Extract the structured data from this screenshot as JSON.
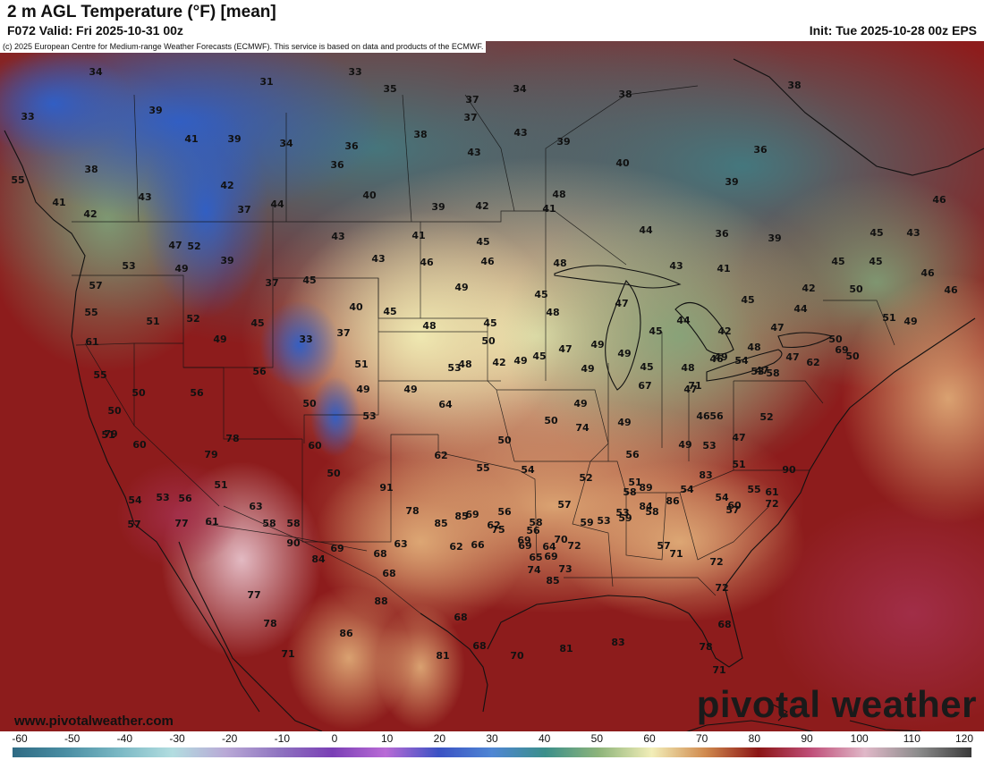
{
  "header": {
    "title": "2 m AGL Temperature (°F) [mean]",
    "valid": "F072 Valid: Fri 2025-10-31 00z",
    "init": "Init: Tue 2025-10-28 00z EPS"
  },
  "copyright": "(c) 2025 European Centre for Medium-range Weather Forecasts (ECMWF). This service is based on data and products of the ECMWF.",
  "footer": {
    "url": "www.pivotalweather.com",
    "brand": "pivotal weather"
  },
  "colorbar": {
    "ticks": [
      "-60",
      "-50",
      "-40",
      "-30",
      "-20",
      "-10",
      "0",
      "10",
      "20",
      "30",
      "40",
      "50",
      "60",
      "70",
      "80",
      "90",
      "100",
      "110",
      "120"
    ],
    "stops": [
      "#2f6b84",
      "#4a8ea3",
      "#7ab8c4",
      "#b2dde0",
      "#b9a9d6",
      "#8f74c0",
      "#7a3fb5",
      "#b96bd6",
      "#3b52c4",
      "#4f86d4",
      "#3b8f8a",
      "#8db47a",
      "#f2eeb8",
      "#d08a4e",
      "#8b1515",
      "#c0507a",
      "#e0b8c8",
      "#8c8c8c",
      "#3a3a3a"
    ]
  },
  "temperatures": [
    "34",
    "33",
    "31",
    "35",
    "37",
    "34",
    "38",
    "38",
    "33",
    "39",
    "37",
    "41",
    "39",
    "34",
    "36",
    "43",
    "39",
    "36",
    "40",
    "38",
    "55",
    "43",
    "42",
    "36",
    "38",
    "39",
    "48",
    "43",
    "44",
    "39",
    "42",
    "41",
    "40",
    "37",
    "42",
    "47",
    "44",
    "41",
    "43",
    "41",
    "45",
    "36",
    "39",
    "45",
    "43",
    "52",
    "53",
    "49",
    "39",
    "43",
    "46",
    "46",
    "48",
    "43",
    "41",
    "45",
    "46",
    "57",
    "37",
    "45",
    "49",
    "45",
    "42",
    "50",
    "55",
    "51",
    "52",
    "45",
    "40",
    "45",
    "45",
    "48",
    "47",
    "44",
    "46",
    "45",
    "51",
    "61",
    "49",
    "33",
    "37",
    "48",
    "45",
    "50",
    "42",
    "47",
    "47",
    "49",
    "45",
    "44",
    "56",
    "51",
    "53",
    "42",
    "49",
    "49",
    "46",
    "48",
    "48",
    "50",
    "69",
    "55",
    "56",
    "50",
    "49",
    "49",
    "48",
    "45",
    "49",
    "45",
    "47",
    "49",
    "53",
    "58",
    "62",
    "50",
    "49",
    "50",
    "50",
    "53",
    "49",
    "67",
    "71",
    "54",
    "47",
    "47",
    "46",
    "51",
    "64",
    "50",
    "74",
    "49",
    "56",
    "47",
    "79",
    "78",
    "60",
    "50",
    "49",
    "46",
    "60",
    "79",
    "62",
    "56",
    "53",
    "52",
    "51",
    "54",
    "55",
    "54",
    "58",
    "83",
    "57",
    "51",
    "50",
    "52",
    "51",
    "84",
    "89",
    "86",
    "56",
    "54",
    "53",
    "56",
    "63",
    "91",
    "78",
    "85",
    "69",
    "62",
    "58",
    "57",
    "53",
    "54",
    "55",
    "57",
    "77",
    "61",
    "58",
    "58",
    "69",
    "63",
    "56",
    "53",
    "59",
    "59",
    "58",
    "57",
    "60",
    "61",
    "72",
    "90",
    "90",
    "85",
    "75",
    "69",
    "64",
    "69",
    "68",
    "68",
    "62",
    "66",
    "69",
    "65",
    "72",
    "73",
    "85",
    "74",
    "70",
    "71",
    "72",
    "84",
    "77",
    "78",
    "71",
    "86",
    "88",
    "68",
    "70",
    "81",
    "83",
    "72",
    "68",
    "78",
    "71",
    "81",
    "68"
  ]
}
